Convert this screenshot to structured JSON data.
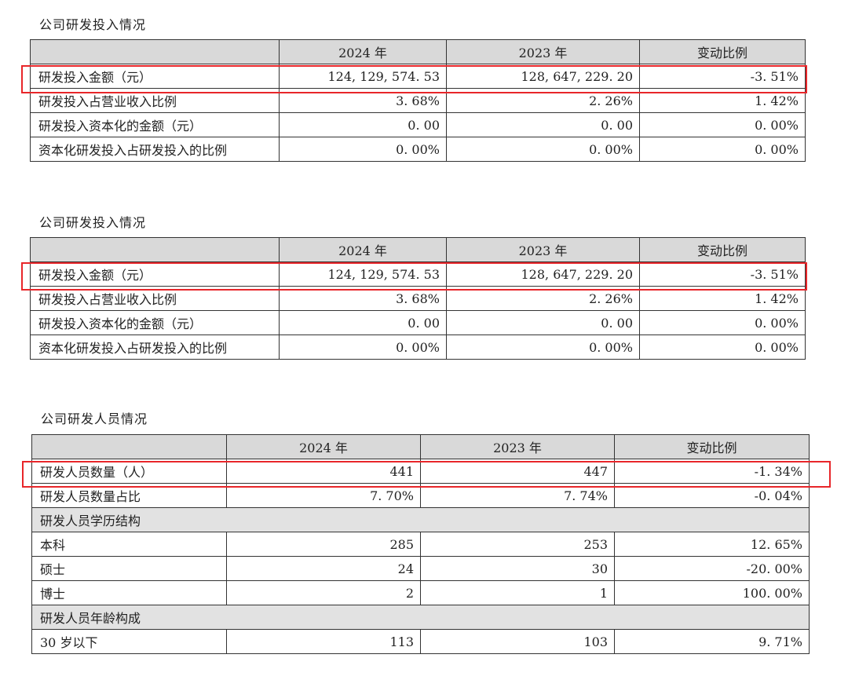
{
  "tables": [
    {
      "title": "公司研发投入情况",
      "headers": [
        "",
        "2024 年",
        "2023 年",
        "变动比例"
      ],
      "rows": [
        {
          "label": "研发投入金额（元）",
          "v2024": "124, 129, 574. 53",
          "v2023": "128, 647, 229. 20",
          "change": "-3. 51%"
        },
        {
          "label": "研发投入占营业收入比例",
          "v2024": "3. 68%",
          "v2023": "2. 26%",
          "change": "1. 42%"
        },
        {
          "label": "研发投入资本化的金额（元）",
          "v2024": "0. 00",
          "v2023": "0. 00",
          "change": "0. 00%"
        },
        {
          "label": "资本化研发投入占研发投入的比例",
          "v2024": "0. 00%",
          "v2023": "0. 00%",
          "change": "0. 00%"
        }
      ]
    },
    {
      "title": "公司研发投入情况",
      "headers": [
        "",
        "2024 年",
        "2023 年",
        "变动比例"
      ],
      "rows": [
        {
          "label": "研发投入金额（元）",
          "v2024": "124, 129, 574. 53",
          "v2023": "128, 647, 229. 20",
          "change": "-3. 51%"
        },
        {
          "label": "研发投入占营业收入比例",
          "v2024": "3. 68%",
          "v2023": "2. 26%",
          "change": "1. 42%"
        },
        {
          "label": "研发投入资本化的金额（元）",
          "v2024": "0. 00",
          "v2023": "0. 00",
          "change": "0. 00%"
        },
        {
          "label": "资本化研发投入占研发投入的比例",
          "v2024": "0. 00%",
          "v2023": "0. 00%",
          "change": "0. 00%"
        }
      ]
    },
    {
      "title": "公司研发人员情况",
      "headers": [
        "",
        "2024 年",
        "2023 年",
        "变动比例"
      ],
      "rows": [
        {
          "label": "研发人员数量（人）",
          "v2024": "441",
          "v2023": "447",
          "change": "-1. 34%"
        },
        {
          "label": "研发人员数量占比",
          "v2024": "7. 70%",
          "v2023": "7. 74%",
          "change": "-0. 04%"
        },
        {
          "label": "研发人员学历结构",
          "group": true
        },
        {
          "label": "本科",
          "v2024": "285",
          "v2023": "253",
          "change": "12. 65%"
        },
        {
          "label": "硕士",
          "v2024": "24",
          "v2023": "30",
          "change": "-20. 00%"
        },
        {
          "label": "博士",
          "v2024": "2",
          "v2023": "1",
          "change": "100. 00%"
        },
        {
          "label": "研发人员年龄构成",
          "group": true
        },
        {
          "label": "30 岁以下",
          "v2024": "113",
          "v2023": "103",
          "change": "9. 71%"
        }
      ]
    }
  ],
  "highlight_color": "#e8262a"
}
